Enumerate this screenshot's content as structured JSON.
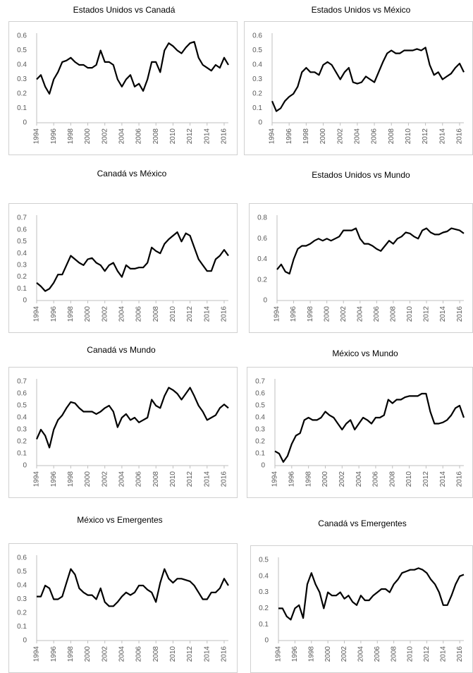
{
  "chart_data": [
    {
      "type": "line",
      "title": "Estados Unidos vs Canadá",
      "color": "#000000",
      "grid": false,
      "x": [
        1994,
        1994.5,
        1995,
        1995.5,
        1996,
        1996.5,
        1997,
        1997.5,
        1998,
        1998.5,
        1999,
        1999.5,
        2000,
        2000.5,
        2001,
        2001.5,
        2002,
        2002.5,
        2003,
        2003.5,
        2004,
        2004.5,
        2005,
        2005.5,
        2006,
        2006.5,
        2007,
        2007.5,
        2008,
        2008.5,
        2009,
        2009.5,
        2010,
        2010.5,
        2011,
        2011.5,
        2012,
        2012.5,
        2013,
        2013.5,
        2014,
        2014.5,
        2015,
        2015.5,
        2016,
        2016.5
      ],
      "values": [
        0.3,
        0.33,
        0.25,
        0.2,
        0.3,
        0.35,
        0.42,
        0.43,
        0.45,
        0.42,
        0.4,
        0.4,
        0.38,
        0.38,
        0.4,
        0.5,
        0.42,
        0.42,
        0.4,
        0.3,
        0.25,
        0.3,
        0.33,
        0.25,
        0.27,
        0.22,
        0.3,
        0.42,
        0.42,
        0.35,
        0.5,
        0.55,
        0.53,
        0.5,
        0.48,
        0.52,
        0.55,
        0.56,
        0.45,
        0.4,
        0.38,
        0.36,
        0.4,
        0.38,
        0.45,
        0.4
      ],
      "xlim": [
        1994,
        2016.5
      ],
      "xticks": [
        1994,
        1996,
        1998,
        2000,
        2002,
        2004,
        2006,
        2008,
        2010,
        2012,
        2014,
        2016
      ],
      "ylim": [
        0,
        0.6
      ],
      "yticks": [
        0,
        0.1,
        0.2,
        0.3,
        0.4,
        0.5,
        0.6
      ]
    },
    {
      "type": "line",
      "title": "Estados Unidos vs México",
      "color": "#000000",
      "grid": false,
      "x": [
        1994,
        1994.5,
        1995,
        1995.5,
        1996,
        1996.5,
        1997,
        1997.5,
        1998,
        1998.5,
        1999,
        1999.5,
        2000,
        2000.5,
        2001,
        2001.5,
        2002,
        2002.5,
        2003,
        2003.5,
        2004,
        2004.5,
        2005,
        2005.5,
        2006,
        2006.5,
        2007,
        2007.5,
        2008,
        2008.5,
        2009,
        2009.5,
        2010,
        2010.5,
        2011,
        2011.5,
        2012,
        2012.5,
        2013,
        2013.5,
        2014,
        2014.5,
        2015,
        2015.5,
        2016,
        2016.5
      ],
      "values": [
        0.15,
        0.08,
        0.1,
        0.15,
        0.18,
        0.2,
        0.25,
        0.35,
        0.38,
        0.35,
        0.35,
        0.33,
        0.4,
        0.42,
        0.4,
        0.35,
        0.3,
        0.35,
        0.38,
        0.28,
        0.27,
        0.28,
        0.32,
        0.3,
        0.28,
        0.35,
        0.42,
        0.48,
        0.5,
        0.48,
        0.48,
        0.5,
        0.5,
        0.5,
        0.51,
        0.5,
        0.52,
        0.4,
        0.33,
        0.35,
        0.3,
        0.32,
        0.34,
        0.38,
        0.41,
        0.35
      ],
      "xlim": [
        1994,
        2016.5
      ],
      "xticks": [
        1994,
        1996,
        1998,
        2000,
        2002,
        2004,
        2006,
        2008,
        2010,
        2012,
        2014,
        2016
      ],
      "ylim": [
        0,
        0.6
      ],
      "yticks": [
        0,
        0.1,
        0.2,
        0.3,
        0.4,
        0.5,
        0.6
      ]
    },
    {
      "type": "line",
      "title": "Canadá vs México",
      "color": "#000000",
      "grid": false,
      "x": [
        1994,
        1994.5,
        1995,
        1995.5,
        1996,
        1996.5,
        1997,
        1997.5,
        1998,
        1998.5,
        1999,
        1999.5,
        2000,
        2000.5,
        2001,
        2001.5,
        2002,
        2002.5,
        2003,
        2003.5,
        2004,
        2004.5,
        2005,
        2005.5,
        2006,
        2006.5,
        2007,
        2007.5,
        2008,
        2008.5,
        2009,
        2009.5,
        2010,
        2010.5,
        2011,
        2011.5,
        2012,
        2012.5,
        2013,
        2013.5,
        2014,
        2014.5,
        2015,
        2015.5,
        2016,
        2016.5
      ],
      "values": [
        0.15,
        0.12,
        0.08,
        0.1,
        0.15,
        0.22,
        0.22,
        0.3,
        0.38,
        0.35,
        0.32,
        0.3,
        0.35,
        0.36,
        0.32,
        0.3,
        0.25,
        0.3,
        0.32,
        0.25,
        0.2,
        0.3,
        0.27,
        0.27,
        0.28,
        0.28,
        0.32,
        0.45,
        0.42,
        0.4,
        0.48,
        0.52,
        0.55,
        0.58,
        0.5,
        0.57,
        0.55,
        0.45,
        0.35,
        0.3,
        0.25,
        0.25,
        0.35,
        0.38,
        0.43,
        0.38
      ],
      "xlim": [
        1994,
        2016.5
      ],
      "xticks": [
        1994,
        1996,
        1998,
        2000,
        2002,
        2004,
        2006,
        2008,
        2010,
        2012,
        2014,
        2016
      ],
      "ylim": [
        0,
        0.7
      ],
      "yticks": [
        0,
        0.1,
        0.2,
        0.3,
        0.4,
        0.5,
        0.6,
        0.7
      ]
    },
    {
      "type": "line",
      "title": "Estados Unidos vs Mundo",
      "color": "#000000",
      "grid": false,
      "x": [
        1994,
        1994.5,
        1995,
        1995.5,
        1996,
        1996.5,
        1997,
        1997.5,
        1998,
        1998.5,
        1999,
        1999.5,
        2000,
        2000.5,
        2001,
        2001.5,
        2002,
        2002.5,
        2003,
        2003.5,
        2004,
        2004.5,
        2005,
        2005.5,
        2006,
        2006.5,
        2007,
        2007.5,
        2008,
        2008.5,
        2009,
        2009.5,
        2010,
        2010.5,
        2011,
        2011.5,
        2012,
        2012.5,
        2013,
        2013.5,
        2014,
        2014.5,
        2015,
        2015.5,
        2016,
        2016.5
      ],
      "values": [
        0.3,
        0.35,
        0.28,
        0.26,
        0.4,
        0.5,
        0.53,
        0.53,
        0.55,
        0.58,
        0.6,
        0.58,
        0.6,
        0.58,
        0.6,
        0.62,
        0.68,
        0.68,
        0.68,
        0.7,
        0.6,
        0.55,
        0.55,
        0.53,
        0.5,
        0.48,
        0.53,
        0.58,
        0.55,
        0.6,
        0.62,
        0.66,
        0.65,
        0.62,
        0.6,
        0.68,
        0.7,
        0.66,
        0.64,
        0.64,
        0.66,
        0.67,
        0.7,
        0.69,
        0.68,
        0.65
      ],
      "xlim": [
        1994,
        2016.5
      ],
      "xticks": [
        1994,
        1996,
        1998,
        2000,
        2002,
        2004,
        2006,
        2008,
        2010,
        2012,
        2014,
        2016
      ],
      "ylim": [
        0,
        0.8
      ],
      "yticks": [
        0,
        0.2,
        0.4,
        0.6,
        0.8
      ]
    },
    {
      "type": "line",
      "title": "Canadá vs Mundo",
      "color": "#000000",
      "grid": false,
      "x": [
        1994,
        1994.5,
        1995,
        1995.5,
        1996,
        1996.5,
        1997,
        1997.5,
        1998,
        1998.5,
        1999,
        1999.5,
        2000,
        2000.5,
        2001,
        2001.5,
        2002,
        2002.5,
        2003,
        2003.5,
        2004,
        2004.5,
        2005,
        2005.5,
        2006,
        2006.5,
        2007,
        2007.5,
        2008,
        2008.5,
        2009,
        2009.5,
        2010,
        2010.5,
        2011,
        2011.5,
        2012,
        2012.5,
        2013,
        2013.5,
        2014,
        2014.5,
        2015,
        2015.5,
        2016,
        2016.5
      ],
      "values": [
        0.22,
        0.3,
        0.25,
        0.15,
        0.3,
        0.38,
        0.42,
        0.48,
        0.53,
        0.52,
        0.48,
        0.45,
        0.45,
        0.45,
        0.43,
        0.45,
        0.48,
        0.5,
        0.45,
        0.32,
        0.4,
        0.43,
        0.38,
        0.4,
        0.36,
        0.38,
        0.4,
        0.55,
        0.5,
        0.48,
        0.58,
        0.65,
        0.63,
        0.6,
        0.55,
        0.6,
        0.65,
        0.58,
        0.5,
        0.45,
        0.38,
        0.4,
        0.42,
        0.48,
        0.51,
        0.48
      ],
      "xlim": [
        1994,
        2016.5
      ],
      "xticks": [
        1994,
        1996,
        1998,
        2000,
        2002,
        2004,
        2006,
        2008,
        2010,
        2012,
        2014,
        2016
      ],
      "ylim": [
        0,
        0.7
      ],
      "yticks": [
        0,
        0.1,
        0.2,
        0.3,
        0.4,
        0.5,
        0.6,
        0.7
      ]
    },
    {
      "type": "line",
      "title": "México vs Mundo",
      "color": "#000000",
      "grid": false,
      "x": [
        1994,
        1994.5,
        1995,
        1995.5,
        1996,
        1996.5,
        1997,
        1997.5,
        1998,
        1998.5,
        1999,
        1999.5,
        2000,
        2000.5,
        2001,
        2001.5,
        2002,
        2002.5,
        2003,
        2003.5,
        2004,
        2004.5,
        2005,
        2005.5,
        2006,
        2006.5,
        2007,
        2007.5,
        2008,
        2008.5,
        2009,
        2009.5,
        2010,
        2010.5,
        2011,
        2011.5,
        2012,
        2012.5,
        2013,
        2013.5,
        2014,
        2014.5,
        2015,
        2015.5,
        2016,
        2016.5
      ],
      "values": [
        0.12,
        0.1,
        0.03,
        0.08,
        0.18,
        0.25,
        0.27,
        0.38,
        0.4,
        0.38,
        0.38,
        0.4,
        0.45,
        0.42,
        0.4,
        0.35,
        0.3,
        0.35,
        0.38,
        0.3,
        0.35,
        0.4,
        0.38,
        0.35,
        0.4,
        0.4,
        0.42,
        0.55,
        0.52,
        0.55,
        0.55,
        0.57,
        0.58,
        0.58,
        0.58,
        0.6,
        0.6,
        0.45,
        0.35,
        0.35,
        0.36,
        0.38,
        0.42,
        0.48,
        0.5,
        0.4
      ],
      "xlim": [
        1994,
        2016.5
      ],
      "xticks": [
        1994,
        1996,
        1998,
        2000,
        2002,
        2004,
        2006,
        2008,
        2010,
        2012,
        2014,
        2016
      ],
      "ylim": [
        0,
        0.7
      ],
      "yticks": [
        0,
        0.1,
        0.2,
        0.3,
        0.4,
        0.5,
        0.6,
        0.7
      ]
    },
    {
      "type": "line",
      "title": "México vs Emergentes",
      "color": "#000000",
      "grid": false,
      "x": [
        1994,
        1994.5,
        1995,
        1995.5,
        1996,
        1996.5,
        1997,
        1997.5,
        1998,
        1998.5,
        1999,
        1999.5,
        2000,
        2000.5,
        2001,
        2001.5,
        2002,
        2002.5,
        2003,
        2003.5,
        2004,
        2004.5,
        2005,
        2005.5,
        2006,
        2006.5,
        2007,
        2007.5,
        2008,
        2008.5,
        2009,
        2009.5,
        2010,
        2010.5,
        2011,
        2011.5,
        2012,
        2012.5,
        2013,
        2013.5,
        2014,
        2014.5,
        2015,
        2015.5,
        2016,
        2016.5
      ],
      "values": [
        0.32,
        0.32,
        0.4,
        0.38,
        0.3,
        0.3,
        0.32,
        0.42,
        0.52,
        0.48,
        0.38,
        0.35,
        0.33,
        0.33,
        0.3,
        0.38,
        0.28,
        0.25,
        0.25,
        0.28,
        0.32,
        0.35,
        0.33,
        0.35,
        0.4,
        0.4,
        0.37,
        0.35,
        0.28,
        0.42,
        0.52,
        0.45,
        0.42,
        0.45,
        0.45,
        0.44,
        0.43,
        0.4,
        0.35,
        0.3,
        0.3,
        0.35,
        0.35,
        0.38,
        0.45,
        0.4
      ],
      "xlim": [
        1994,
        2016.5
      ],
      "xticks": [
        1994,
        1996,
        1998,
        2000,
        2002,
        2004,
        2006,
        2008,
        2010,
        2012,
        2014,
        2016
      ],
      "ylim": [
        0,
        0.6
      ],
      "yticks": [
        0,
        0.1,
        0.2,
        0.3,
        0.4,
        0.5,
        0.6
      ]
    },
    {
      "type": "line",
      "title": "Canadá vs Emergentes",
      "color": "#000000",
      "grid": false,
      "x": [
        1994,
        1994.5,
        1995,
        1995.5,
        1996,
        1996.5,
        1997,
        1997.5,
        1998,
        1998.5,
        1999,
        1999.5,
        2000,
        2000.5,
        2001,
        2001.5,
        2002,
        2002.5,
        2003,
        2003.5,
        2004,
        2004.5,
        2005,
        2005.5,
        2006,
        2006.5,
        2007,
        2007.5,
        2008,
        2008.5,
        2009,
        2009.5,
        2010,
        2010.5,
        2011,
        2011.5,
        2012,
        2012.5,
        2013,
        2013.5,
        2014,
        2014.5,
        2015,
        2015.5,
        2016,
        2016.5
      ],
      "values": [
        0.2,
        0.2,
        0.15,
        0.13,
        0.2,
        0.22,
        0.14,
        0.35,
        0.42,
        0.35,
        0.3,
        0.2,
        0.3,
        0.28,
        0.28,
        0.3,
        0.26,
        0.28,
        0.24,
        0.22,
        0.28,
        0.25,
        0.25,
        0.28,
        0.3,
        0.32,
        0.32,
        0.3,
        0.35,
        0.38,
        0.42,
        0.43,
        0.44,
        0.44,
        0.45,
        0.44,
        0.42,
        0.38,
        0.35,
        0.3,
        0.22,
        0.22,
        0.28,
        0.35,
        0.4,
        0.41
      ],
      "xlim": [
        1994,
        2016.5
      ],
      "xticks": [
        1994,
        1996,
        1998,
        2000,
        2002,
        2004,
        2006,
        2008,
        2010,
        2012,
        2014,
        2016
      ],
      "ylim": [
        0,
        0.5
      ],
      "yticks": [
        0,
        0.1,
        0.2,
        0.3,
        0.4,
        0.5
      ]
    }
  ]
}
